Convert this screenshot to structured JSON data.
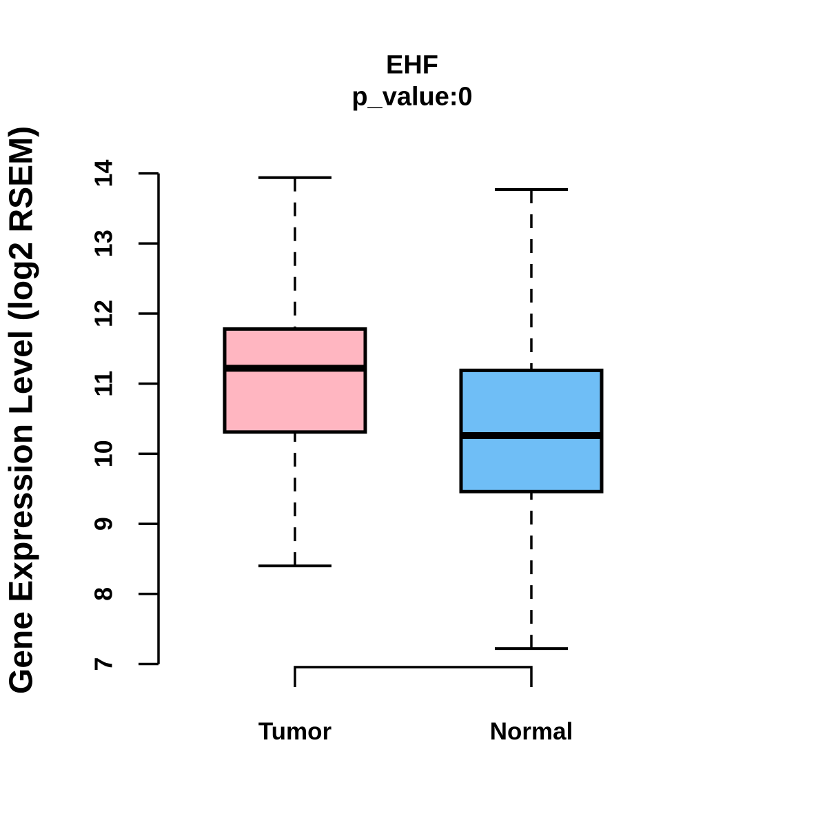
{
  "figure": {
    "title": "EHF",
    "subtitle": "p_value:0",
    "ylabel": "Gene Expression Level (log2 RSEM)"
  },
  "chart_data": {
    "type": "boxplot",
    "title": "EHF",
    "subtitle": "p_value:0",
    "ylabel": "Gene Expression Level (log2 RSEM)",
    "xlabel": "",
    "categories": [
      "Tumor",
      "Normal"
    ],
    "series": [
      {
        "name": "Tumor",
        "lower_whisker": 8.4,
        "q1": 10.31,
        "median": 11.22,
        "q3": 11.78,
        "upper_whisker": 13.94,
        "fill_color": "#FFB6C1"
      },
      {
        "name": "Normal",
        "lower_whisker": 7.22,
        "q1": 9.46,
        "median": 10.26,
        "q3": 11.19,
        "upper_whisker": 13.77,
        "fill_color": "#6FBEF6"
      }
    ],
    "ylim": [
      7,
      14
    ],
    "yticks": [
      "7",
      "8",
      "9",
      "10",
      "11",
      "12",
      "13",
      "14"
    ],
    "grid": false,
    "legend": "none",
    "outliers": [],
    "box_border_color": "#000000",
    "median_color": "#000000",
    "whisker_style": "dashed",
    "background_color": "#ffffff"
  }
}
